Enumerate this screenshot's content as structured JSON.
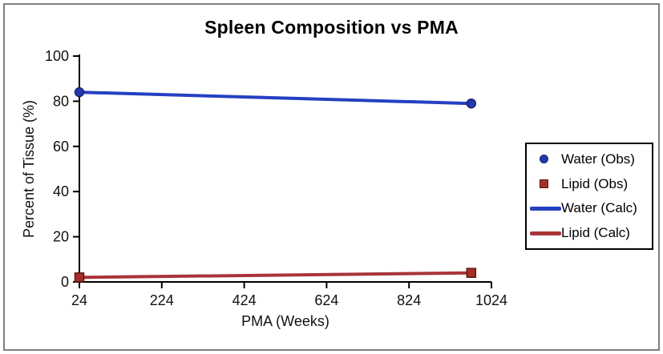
{
  "figure": {
    "background": "#ffffff",
    "frame_border_color": "#7f7f7f",
    "axis_color": "#000000",
    "legend_border_color": "#000000"
  },
  "chart_data": {
    "type": "line",
    "title": "Spleen Composition vs PMA",
    "xlabel": "PMA (Weeks)",
    "ylabel": "Percent of Tissue (%)",
    "xlim": [
      24,
      1024
    ],
    "ylim": [
      0,
      100
    ],
    "xticks": [
      24,
      224,
      424,
      624,
      824,
      1024
    ],
    "yticks": [
      0,
      20,
      40,
      60,
      80,
      100
    ],
    "grid": false,
    "legend_position": "right-outside",
    "series": [
      {
        "name": "Water (Obs)",
        "plot": "scatter",
        "marker": "circle",
        "color": "#2438ae",
        "edge_color": "#16246f",
        "x": [
          24,
          975
        ],
        "y": [
          84,
          79
        ]
      },
      {
        "name": "Lipid (Obs)",
        "plot": "scatter",
        "marker": "square",
        "color": "#a52f28",
        "edge_color": "#5f1511",
        "x": [
          24,
          975
        ],
        "y": [
          2,
          4
        ]
      },
      {
        "name": "Water (Calc)",
        "plot": "line",
        "color": "#2540c2",
        "x": [
          24,
          975
        ],
        "y": [
          84,
          79
        ]
      },
      {
        "name": "Lipid (Calc)",
        "plot": "line",
        "color": "#a93438",
        "x": [
          24,
          975
        ],
        "y": [
          2,
          4
        ]
      }
    ]
  }
}
